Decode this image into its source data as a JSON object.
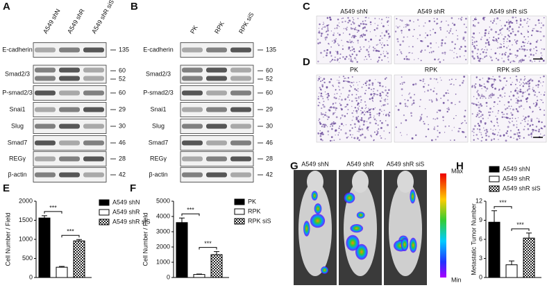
{
  "panel_labels": [
    "A",
    "B",
    "C",
    "D",
    "E",
    "F",
    "G",
    "H"
  ],
  "blots": [
    {
      "lanes": [
        "A549 shN",
        "A549 shR",
        "A549 shR siS"
      ],
      "rows": [
        {
          "name": "E-cadherin",
          "markers": [
            135
          ]
        },
        {
          "name": "Smad2/3",
          "markers": [
            60,
            52
          ]
        },
        {
          "name": "P-smad2/3",
          "markers": [
            60
          ]
        },
        {
          "name": "Snai1",
          "markers": [
            29
          ]
        },
        {
          "name": "Slug",
          "markers": [
            30
          ]
        },
        {
          "name": "Smad7",
          "markers": [
            46
          ]
        },
        {
          "name": "REGγ",
          "markers": [
            28
          ]
        },
        {
          "name": "β-actin",
          "markers": [
            42
          ]
        }
      ]
    },
    {
      "lanes": [
        "PK",
        "RPK",
        "RPK siS"
      ],
      "rows": [
        {
          "name": "E-cadherin",
          "markers": [
            135
          ]
        },
        {
          "name": "Smad2/3",
          "markers": [
            60,
            52
          ]
        },
        {
          "name": "P-smad2/3",
          "markers": [
            60
          ]
        },
        {
          "name": "Snai1",
          "markers": [
            29
          ]
        },
        {
          "name": "Slug",
          "markers": [
            30
          ]
        },
        {
          "name": "Smad7",
          "markers": [
            46
          ]
        },
        {
          "name": "REGγ",
          "markers": [
            28
          ]
        },
        {
          "name": "β-actin",
          "markers": [
            42
          ]
        }
      ]
    }
  ],
  "micrographs": [
    {
      "titles": [
        "A549 shN",
        "A549 shR",
        "A549 shR siS"
      ]
    },
    {
      "titles": [
        "PK",
        "RPK",
        "RPK siS"
      ]
    }
  ],
  "imaging": {
    "titles": [
      "A549 shN",
      "A549 shR",
      "A549 shR siS"
    ],
    "scale_max": "Max",
    "scale_min": "Min"
  },
  "chart_data": [
    {
      "type": "bar",
      "y_label": "Cell Number / Field",
      "ylim": [
        0,
        2000
      ],
      "yticks": [
        0,
        500,
        1000,
        1500,
        2000
      ],
      "series": [
        {
          "name": "A549 shN",
          "fill": "black",
          "values": [
            1560
          ],
          "errors": [
            60
          ]
        },
        {
          "name": "A549 shR",
          "fill": "white",
          "values": [
            270
          ],
          "errors": [
            20
          ]
        },
        {
          "name": "A549 shR siS",
          "fill": "checker",
          "values": [
            960
          ],
          "errors": [
            35
          ]
        }
      ],
      "annotations": [
        "***",
        "***"
      ]
    },
    {
      "type": "bar",
      "y_label": "Cell Number / Field",
      "ylim": [
        0,
        5000
      ],
      "yticks": [
        0,
        1000,
        2000,
        3000,
        4000,
        5000
      ],
      "series": [
        {
          "name": "PK",
          "fill": "black",
          "values": [
            3600
          ],
          "errors": [
            300
          ]
        },
        {
          "name": "RPK",
          "fill": "white",
          "values": [
            200
          ],
          "errors": [
            30
          ]
        },
        {
          "name": "RPK siS",
          "fill": "checker",
          "values": [
            1500
          ],
          "errors": [
            200
          ]
        }
      ],
      "annotations": [
        "***",
        "***"
      ]
    },
    {
      "type": "bar",
      "y_label": "Metastatic Tumor Number",
      "ylim": [
        0,
        12
      ],
      "yticks": [
        0,
        3,
        6,
        9,
        12
      ],
      "series": [
        {
          "name": "A549 shN",
          "fill": "black",
          "values": [
            8.7
          ],
          "errors": [
            1.8
          ]
        },
        {
          "name": "A549 shR",
          "fill": "white",
          "values": [
            2.0
          ],
          "errors": [
            0.6
          ]
        },
        {
          "name": "A549 shR siS",
          "fill": "checker",
          "values": [
            6.2
          ],
          "errors": [
            0.8
          ]
        }
      ],
      "annotations": [
        "***",
        "***"
      ]
    }
  ]
}
